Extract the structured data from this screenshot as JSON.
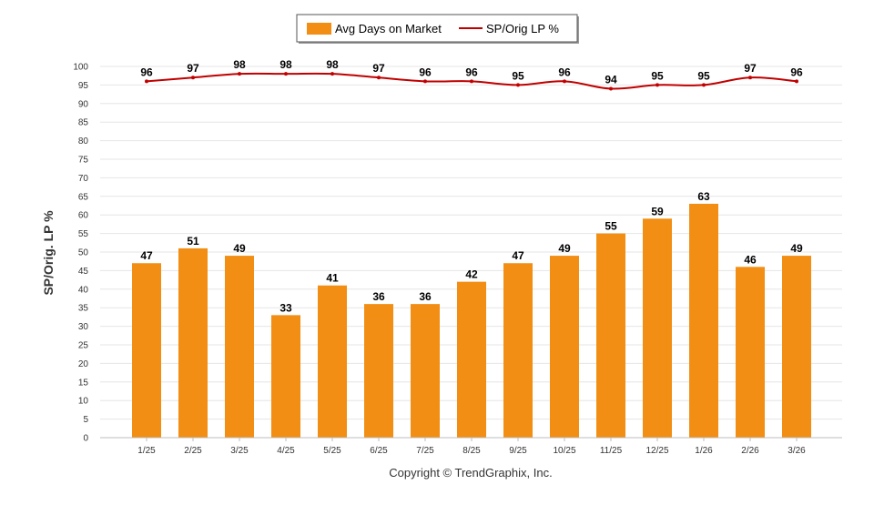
{
  "chart_data": {
    "type": "bar",
    "categories": [
      "1/25",
      "2/25",
      "3/25",
      "4/25",
      "5/25",
      "6/25",
      "7/25",
      "8/25",
      "9/25",
      "10/25",
      "11/25",
      "12/25",
      "1/26",
      "2/26",
      "3/26"
    ],
    "series": [
      {
        "name": "Avg Days on Market",
        "type": "bar",
        "color": "#f28e13",
        "values": [
          47,
          51,
          49,
          33,
          41,
          36,
          36,
          42,
          47,
          49,
          55,
          59,
          63,
          46,
          49
        ]
      },
      {
        "name": "SP/Orig LP %",
        "type": "line",
        "color": "#c00000",
        "values": [
          96,
          97,
          98,
          98,
          98,
          97,
          96,
          96,
          95,
          96,
          94,
          95,
          95,
          97,
          96
        ]
      }
    ],
    "ylabel": "SP/Orig. LP %",
    "ylim": [
      0,
      100
    ],
    "yticks": [
      0,
      5,
      10,
      15,
      20,
      25,
      30,
      35,
      40,
      45,
      50,
      55,
      60,
      65,
      70,
      75,
      80,
      85,
      90,
      95,
      100
    ],
    "grid": true,
    "legend": "top-center"
  },
  "footer": {
    "copyright": "Copyright © TrendGraphix, Inc."
  }
}
